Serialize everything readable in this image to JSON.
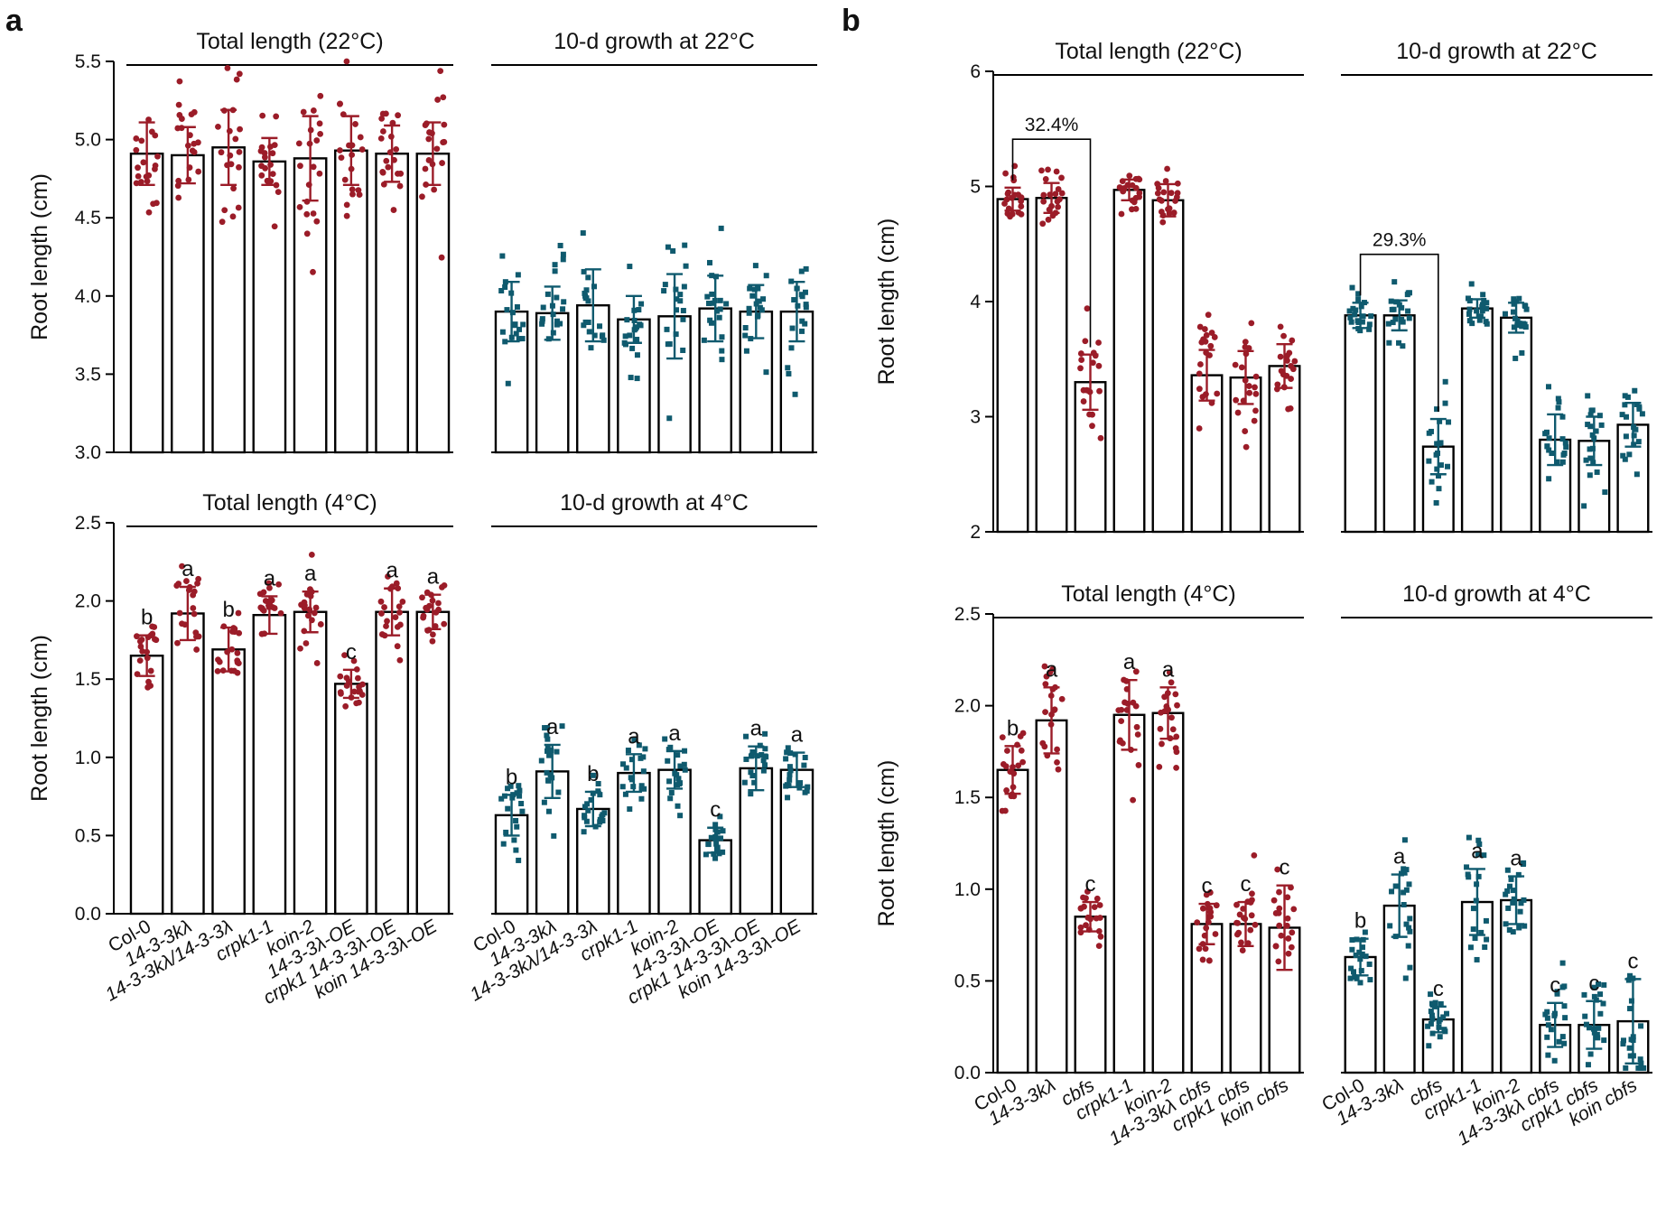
{
  "figure": {
    "panel_a_label": "a",
    "panel_b_label": "b"
  },
  "colors": {
    "warm": "#9b1c28",
    "cold": "#0f5a6e",
    "bar_edge": "#000000",
    "bar_fill": "#ffffff"
  },
  "chart_data": [
    {
      "id": "a_top",
      "type": "bar",
      "ylabel": "Root length (cm)",
      "ylim": [
        3.0,
        5.5
      ],
      "yticks": [
        3.0,
        3.5,
        4.0,
        4.5,
        5.0,
        5.5
      ],
      "tick_labels": [
        "3.0",
        "3.5",
        "4.0",
        "4.5",
        "5.0",
        "5.5"
      ],
      "groups": [
        {
          "title": "Total length (22°C)",
          "color": "warm",
          "categories": [
            "Col-0",
            "14-3-3kλ",
            "14-3-3kλ/14-3-3λ",
            "crpk1-1",
            "koin-2",
            "14-3-3λ-OE",
            "crpk1 14-3-3λ-OE",
            "koin 14-3-3λ-OE"
          ],
          "values": [
            4.91,
            4.9,
            4.95,
            4.86,
            4.88,
            4.93,
            4.91,
            4.91
          ],
          "sd": [
            0.2,
            0.18,
            0.24,
            0.15,
            0.27,
            0.22,
            0.18,
            0.2
          ],
          "letters": []
        },
        {
          "title": "10-d growth at 22°C",
          "color": "cold",
          "categories": [
            "Col-0",
            "14-3-3kλ",
            "14-3-3kλ/14-3-3λ",
            "crpk1-1",
            "koin-2",
            "14-3-3λ-OE",
            "crpk1 14-3-3λ-OE",
            "koin 14-3-3λ-OE"
          ],
          "values": [
            3.9,
            3.89,
            3.94,
            3.85,
            3.87,
            3.92,
            3.9,
            3.9
          ],
          "sd": [
            0.19,
            0.17,
            0.23,
            0.15,
            0.27,
            0.21,
            0.17,
            0.19
          ],
          "letters": []
        }
      ]
    },
    {
      "id": "a_bottom",
      "type": "bar",
      "ylabel": "Root length (cm)",
      "ylim": [
        0.0,
        2.5
      ],
      "yticks": [
        0.0,
        0.5,
        1.0,
        1.5,
        2.0,
        2.5
      ],
      "tick_labels": [
        "0.0",
        "0.5",
        "1.0",
        "1.5",
        "2.0",
        "2.5"
      ],
      "groups": [
        {
          "title": "Total length (4°C)",
          "color": "warm",
          "categories": [
            "Col-0",
            "14-3-3kλ",
            "14-3-3kλ/14-3-3λ",
            "crpk1-1",
            "koin-2",
            "14-3-3λ-OE",
            "crpk1 14-3-3λ-OE",
            "koin 14-3-3λ-OE"
          ],
          "values": [
            1.65,
            1.92,
            1.69,
            1.91,
            1.93,
            1.47,
            1.93,
            1.93
          ],
          "sd": [
            0.13,
            0.17,
            0.14,
            0.12,
            0.13,
            0.09,
            0.15,
            0.11
          ],
          "letters": [
            "b",
            "a",
            "b",
            "a",
            "a",
            "c",
            "a",
            "a"
          ]
        },
        {
          "title": "10-d growth at 4°C",
          "color": "cold",
          "categories": [
            "Col-0",
            "14-3-3kλ",
            "14-3-3kλ/14-3-3λ",
            "crpk1-1",
            "koin-2",
            "14-3-3λ-OE",
            "crpk1 14-3-3λ-OE",
            "koin 14-3-3λ-OE"
          ],
          "values": [
            0.63,
            0.91,
            0.67,
            0.9,
            0.92,
            0.47,
            0.93,
            0.92
          ],
          "sd": [
            0.13,
            0.17,
            0.11,
            0.12,
            0.12,
            0.08,
            0.14,
            0.11
          ],
          "letters": [
            "b",
            "a",
            "b",
            "a",
            "a",
            "c",
            "a",
            "a"
          ]
        }
      ]
    },
    {
      "id": "b_top",
      "type": "bar",
      "ylabel": "Root length (cm)",
      "ylim": [
        2,
        6
      ],
      "yticks": [
        2,
        3,
        4,
        5,
        6
      ],
      "tick_labels": [
        "2",
        "3",
        "4",
        "5",
        "6"
      ],
      "groups": [
        {
          "title": "Total length (22°C)",
          "color": "warm",
          "categories": [
            "Col-0",
            "14-3-3kλ",
            "cbfs",
            "crpk1-1",
            "koin-2",
            "14-3-3kλ cbfs",
            "crpk1 cbfs",
            "koin cbfs"
          ],
          "values": [
            4.89,
            4.9,
            3.3,
            4.97,
            4.88,
            3.36,
            3.34,
            3.44
          ],
          "sd": [
            0.1,
            0.13,
            0.24,
            0.09,
            0.14,
            0.22,
            0.23,
            0.19
          ],
          "letters": []
        },
        {
          "title": "10-d growth at 22°C",
          "color": "cold",
          "categories": [
            "Col-0",
            "14-3-3kλ",
            "cbfs",
            "crpk1-1",
            "koin-2",
            "14-3-3kλ cbfs",
            "crpk1 cbfs",
            "koin cbfs"
          ],
          "values": [
            3.88,
            3.88,
            2.74,
            3.94,
            3.86,
            2.8,
            2.79,
            2.93
          ],
          "sd": [
            0.11,
            0.13,
            0.24,
            0.08,
            0.13,
            0.22,
            0.21,
            0.19
          ],
          "letters": []
        }
      ],
      "annotations": [
        {
          "group": 0,
          "from": 0,
          "to": 2,
          "text": "32.4%"
        },
        {
          "group": 1,
          "from": 0,
          "to": 2,
          "text": "29.3%"
        }
      ]
    },
    {
      "id": "b_bottom",
      "type": "bar",
      "ylabel": "Root length (cm)",
      "ylim": [
        0.0,
        2.5
      ],
      "yticks": [
        0.0,
        0.5,
        1.0,
        1.5,
        2.0,
        2.5
      ],
      "tick_labels": [
        "0.0",
        "0.5",
        "1.0",
        "1.5",
        "2.0",
        "2.5"
      ],
      "groups": [
        {
          "title": "Total length (4°C)",
          "color": "warm",
          "categories": [
            "Col-0",
            "14-3-3kλ",
            "cbfs",
            "crpk1-1",
            "koin-2",
            "14-3-3kλ cbfs",
            "crpk1 cbfs",
            "koin cbfs"
          ],
          "values": [
            1.65,
            1.92,
            0.85,
            1.95,
            1.96,
            0.81,
            0.81,
            0.79
          ],
          "sd": [
            0.13,
            0.18,
            0.08,
            0.19,
            0.14,
            0.11,
            0.12,
            0.23
          ],
          "letters": [
            "b",
            "a",
            "c",
            "a",
            "a",
            "c",
            "c",
            "c"
          ]
        },
        {
          "title": "10-d growth at 4°C",
          "color": "cold",
          "categories": [
            "Col-0",
            "14-3-3kλ",
            "cbfs",
            "crpk1-1",
            "koin-2",
            "14-3-3kλ cbfs",
            "crpk1 cbfs",
            "koin cbfs"
          ],
          "values": [
            0.63,
            0.91,
            0.29,
            0.93,
            0.94,
            0.26,
            0.26,
            0.28
          ],
          "sd": [
            0.1,
            0.17,
            0.07,
            0.18,
            0.13,
            0.12,
            0.13,
            0.23
          ],
          "letters": [
            "b",
            "a",
            "c",
            "a",
            "a",
            "c",
            "c",
            "c"
          ]
        }
      ]
    }
  ]
}
